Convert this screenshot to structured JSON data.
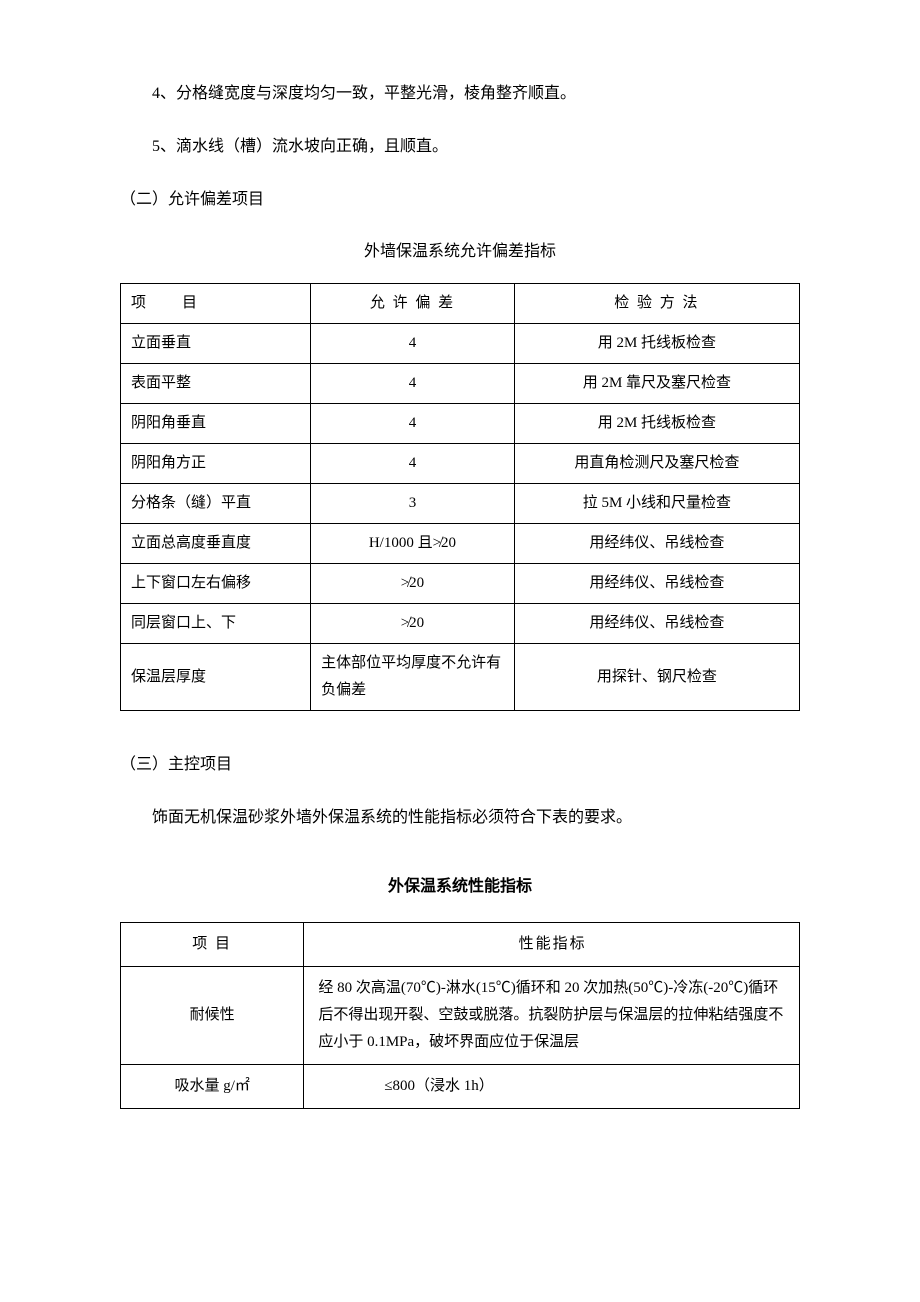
{
  "paras": {
    "p4": "4、分格缝宽度与深度均匀一致，平整光滑，棱角整齐顺直。",
    "p5": "5、滴水线（槽）流水坡向正确，且顺直。"
  },
  "sections": {
    "s2_head": "（二）允许偏差项目",
    "s2_tableTitle": "外墙保温系统允许偏差指标",
    "s3_head": "（三）主控项目",
    "s3_intro": "饰面无机保温砂浆外墙外保温系统的性能指标必须符合下表的要求。",
    "s3_tableTitle": "外保温系统性能指标"
  },
  "table1": {
    "headers": [
      "项　　目",
      "允 许 偏 差",
      "检 验 方 法"
    ],
    "rows": [
      [
        "立面垂直",
        "4",
        "用 2M 托线板检查"
      ],
      [
        "表面平整",
        "4",
        "用 2M 靠尺及塞尺检查"
      ],
      [
        "阴阳角垂直",
        "4",
        "用 2M 托线板检查"
      ],
      [
        "阴阳角方正",
        "4",
        "用直角检测尺及塞尺检查"
      ],
      [
        "分格条（缝）平直",
        "3",
        "拉 5M 小线和尺量检查"
      ],
      [
        "立面总高度垂直度",
        "H/1000 且≯20",
        "用经纬仪、吊线检查"
      ],
      [
        "上下窗口左右偏移",
        "≯20",
        "用经纬仪、吊线检查"
      ],
      [
        "同层窗口上、下",
        "≯20",
        "用经纬仪、吊线检查"
      ],
      [
        "保温层厚度",
        "主体部位平均厚度不允许有负偏差",
        "用探针、钢尺检查"
      ]
    ]
  },
  "table2": {
    "headers": [
      "项 目",
      "性能指标"
    ],
    "rows": [
      [
        "耐候性",
        "经 80 次高温(70℃)-淋水(15℃)循环和 20 次加热(50℃)-冷冻(-20℃)循环后不得出现开裂、空鼓或脱落。抗裂防护层与保温层的拉伸粘结强度不应小于 0.1MPa，破坏界面应位于保温层"
      ],
      [
        "吸水量 g/㎡",
        "≤800（浸水 1h）"
      ]
    ]
  }
}
